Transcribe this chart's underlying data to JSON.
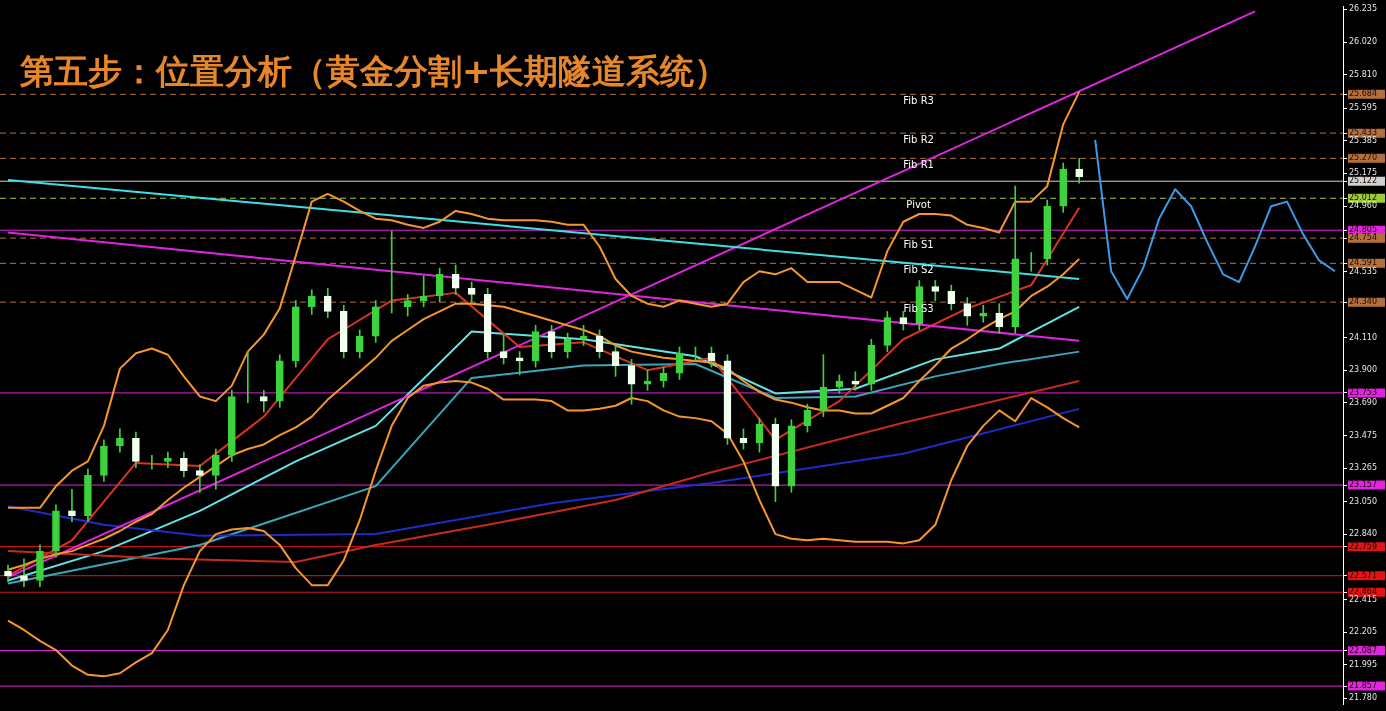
{
  "chart_data": {
    "type": "candlestick",
    "title": "第五步：位置分析（黄金分割+长期隧道系统）",
    "categories": [
      null,
      null,
      null,
      null,
      null,
      null,
      null,
      null,
      null,
      null,
      null,
      null,
      null,
      null,
      null,
      null,
      null,
      null,
      null,
      null,
      null,
      null,
      null,
      null,
      null,
      null,
      null,
      null,
      null,
      null,
      null,
      null,
      null,
      null,
      null,
      null,
      null,
      null,
      null,
      null,
      null,
      null,
      null,
      null,
      null,
      null,
      null,
      null,
      null,
      null,
      null,
      null,
      null,
      null,
      null,
      null,
      null,
      null,
      null,
      null,
      null,
      null,
      null,
      null,
      null,
      null,
      null,
      null,
      null,
      null,
      null,
      null,
      null,
      null,
      null,
      null,
      null,
      null,
      null,
      null,
      null,
      null,
      null,
      null
    ],
    "color": "#3ed23e",
    "colors": [
      "#f2fff0",
      "#f2fff0",
      "#3ed23e",
      "#3ed23e",
      "#f2fff0",
      "#3ed23e",
      "#3ed23e",
      "#3ed23e",
      "#f2fff0",
      "#3ed23e",
      "#3ed23e",
      "#f2fff0",
      "#f2fff0",
      "#3ed23e",
      "#3ed23e",
      "#3ed23e",
      "#f2fff0",
      "#3ed23e",
      "#3ed23e",
      "#3ed23e",
      "#f2fff0",
      "#f2fff0",
      "#3ed23e",
      "#3ed23e",
      "#3ed23e",
      "#3ed23e",
      "#3ed23e",
      "#3ed23e",
      "#f2fff0",
      "#f2fff0",
      "#f2fff0",
      "#f2fff0",
      "#f2fff0",
      "#3ed23e",
      "#f2fff0",
      "#3ed23e",
      "#3ed23e",
      "#f2fff0",
      "#f2fff0",
      "#f2fff0",
      "#3ed23e",
      "#3ed23e",
      "#3ed23e",
      "#3ed23e",
      "#f2fff0",
      "#f2fff0",
      "#f2fff0",
      "#3ed23e",
      "#f2fff0",
      "#3ed23e",
      "#3ed23e",
      "#3ed23e",
      "#3ed23e",
      "#f2fff0",
      "#3ed23e",
      "#3ed23e",
      "#f2fff0",
      "#3ed23e",
      "#f2fff0",
      "#f2fff0",
      "#f2fff0",
      "#3ed23e",
      "#f2fff0",
      "#3ed23e",
      "#3ed23e",
      "#3ed23e",
      "#3ed23e",
      "#f2fff0",
      null,
      null,
      null,
      null,
      null,
      null,
      null,
      null,
      null,
      null,
      null,
      null,
      null,
      null,
      null,
      null
    ],
    "ohlc": [
      [
        22.6,
        22.64,
        22.53,
        22.57
      ],
      [
        22.57,
        22.68,
        22.5,
        22.54
      ],
      [
        22.54,
        22.77,
        22.5,
        22.73
      ],
      [
        22.73,
        23.03,
        22.69,
        22.99
      ],
      [
        22.99,
        23.13,
        22.92,
        22.96
      ],
      [
        22.96,
        23.26,
        22.92,
        23.22
      ],
      [
        23.22,
        23.45,
        23.18,
        23.41
      ],
      [
        23.41,
        23.52,
        23.37,
        23.46
      ],
      [
        23.46,
        23.5,
        23.27,
        23.31
      ],
      [
        23.31,
        23.35,
        23.26,
        23.31
      ],
      [
        23.31,
        23.37,
        23.27,
        23.33
      ],
      [
        23.33,
        23.37,
        23.21,
        23.25
      ],
      [
        23.25,
        23.29,
        23.11,
        23.22
      ],
      [
        23.22,
        23.39,
        23.13,
        23.35
      ],
      [
        23.35,
        23.77,
        23.31,
        23.73
      ],
      [
        23.73,
        24.02,
        23.69,
        23.73
      ],
      [
        23.73,
        23.77,
        23.63,
        23.7
      ],
      [
        23.7,
        24.0,
        23.66,
        23.96
      ],
      [
        23.96,
        24.35,
        23.92,
        24.31
      ],
      [
        24.31,
        24.42,
        24.26,
        24.38
      ],
      [
        24.38,
        24.43,
        24.24,
        24.28
      ],
      [
        24.28,
        24.32,
        23.98,
        24.02
      ],
      [
        24.02,
        24.16,
        23.98,
        24.12
      ],
      [
        24.12,
        24.35,
        24.08,
        24.31
      ],
      [
        24.31,
        24.8,
        24.27,
        24.31
      ],
      [
        24.31,
        24.39,
        24.25,
        24.35
      ],
      [
        24.35,
        24.51,
        24.31,
        24.38
      ],
      [
        24.38,
        24.56,
        24.34,
        24.52
      ],
      [
        24.52,
        24.58,
        24.39,
        24.43
      ],
      [
        24.43,
        24.47,
        24.34,
        24.39
      ],
      [
        24.39,
        24.43,
        23.98,
        24.02
      ],
      [
        24.02,
        24.13,
        23.94,
        23.98
      ],
      [
        23.98,
        24.02,
        23.87,
        23.96
      ],
      [
        23.96,
        24.19,
        23.92,
        24.15
      ],
      [
        24.15,
        24.19,
        23.98,
        24.02
      ],
      [
        24.02,
        24.14,
        23.98,
        24.1
      ],
      [
        24.1,
        24.19,
        24.06,
        24.12
      ],
      [
        24.12,
        24.16,
        23.98,
        24.02
      ],
      [
        24.02,
        24.06,
        23.86,
        23.93
      ],
      [
        23.93,
        23.97,
        23.68,
        23.81
      ],
      [
        23.81,
        23.9,
        23.77,
        23.83
      ],
      [
        23.83,
        23.92,
        23.79,
        23.88
      ],
      [
        23.88,
        24.05,
        23.84,
        24.01
      ],
      [
        24.01,
        24.05,
        23.96,
        24.01
      ],
      [
        24.01,
        24.05,
        23.92,
        23.96
      ],
      [
        23.96,
        24.0,
        23.42,
        23.46
      ],
      [
        23.46,
        23.52,
        23.39,
        23.43
      ],
      [
        23.43,
        23.59,
        23.37,
        23.55
      ],
      [
        23.55,
        23.59,
        23.05,
        23.15
      ],
      [
        23.15,
        23.58,
        23.11,
        23.54
      ],
      [
        23.54,
        23.68,
        23.5,
        23.64
      ],
      [
        23.64,
        24.0,
        23.6,
        23.79
      ],
      [
        23.79,
        23.87,
        23.75,
        23.83
      ],
      [
        23.83,
        23.89,
        23.77,
        23.81
      ],
      [
        23.81,
        24.1,
        23.77,
        24.06
      ],
      [
        24.06,
        24.28,
        24.02,
        24.24
      ],
      [
        24.24,
        24.28,
        24.16,
        24.2
      ],
      [
        24.2,
        24.48,
        24.16,
        24.44
      ],
      [
        24.44,
        24.48,
        24.35,
        24.41
      ],
      [
        24.41,
        24.45,
        24.29,
        24.33
      ],
      [
        24.33,
        24.37,
        24.19,
        24.25
      ],
      [
        24.25,
        24.32,
        24.21,
        24.27
      ],
      [
        24.27,
        24.33,
        24.14,
        24.18
      ],
      [
        24.18,
        25.09,
        24.14,
        24.62
      ],
      [
        24.62,
        24.66,
        24.54,
        24.62
      ],
      [
        24.62,
        25.0,
        24.58,
        24.96
      ],
      [
        24.96,
        25.24,
        24.92,
        25.2
      ],
      [
        25.2,
        25.27,
        25.11,
        25.15
      ],
      null,
      null,
      null,
      null,
      null,
      null,
      null,
      null,
      null,
      null,
      null,
      null,
      null,
      null,
      null,
      null
    ],
    "series": [
      {
        "type": "line",
        "color": "#f5962e",
        "values": [
          23.01,
          23.01,
          23.01,
          23.15,
          23.25,
          23.31,
          23.54,
          23.91,
          24.01,
          24.04,
          24.0,
          23.86,
          23.73,
          23.7,
          23.8,
          24.02,
          24.13,
          24.3,
          24.64,
          24.99,
          25.04,
          24.99,
          24.93,
          24.88,
          24.87,
          24.84,
          24.82,
          24.86,
          24.93,
          24.91,
          24.88,
          24.87,
          24.87,
          24.87,
          24.86,
          24.84,
          24.84,
          24.7,
          24.49,
          24.38,
          24.33,
          24.31,
          24.35,
          24.33,
          24.31,
          24.33,
          24.47,
          24.54,
          24.52,
          24.56,
          24.47,
          24.47,
          24.47,
          24.42,
          24.37,
          24.67,
          24.86,
          24.91,
          24.91,
          24.9,
          24.84,
          24.82,
          24.79,
          24.99,
          24.99,
          25.09,
          25.49,
          25.7,
          null,
          null,
          null,
          null,
          null,
          null,
          null,
          null,
          null,
          null,
          null,
          null,
          null,
          null,
          null,
          null
        ]
      },
      {
        "type": "line",
        "color": "#f5962e",
        "values": [
          22.61,
          22.64,
          22.68,
          22.71,
          22.73,
          22.77,
          22.81,
          22.86,
          22.92,
          22.97,
          23.06,
          23.14,
          23.21,
          23.28,
          23.35,
          23.39,
          23.42,
          23.48,
          23.53,
          23.6,
          23.71,
          23.8,
          23.89,
          23.98,
          24.09,
          24.16,
          24.23,
          24.28,
          24.33,
          24.33,
          24.32,
          24.31,
          24.28,
          24.25,
          24.22,
          24.19,
          24.16,
          24.12,
          24.06,
          24.02,
          24.0,
          23.98,
          23.97,
          23.96,
          23.95,
          23.91,
          23.83,
          23.76,
          23.71,
          23.69,
          23.66,
          23.64,
          23.64,
          23.62,
          23.62,
          23.67,
          23.72,
          23.83,
          23.93,
          24.04,
          24.1,
          24.17,
          24.23,
          24.28,
          24.38,
          24.44,
          24.52,
          24.62,
          null,
          null,
          null,
          null,
          null,
          null,
          null,
          null,
          null,
          null,
          null,
          null,
          null,
          null,
          null,
          null
        ]
      },
      {
        "type": "line",
        "color": "#f5962e",
        "values": [
          22.28,
          22.22,
          22.15,
          22.09,
          21.99,
          21.93,
          21.92,
          21.94,
          22.01,
          22.07,
          22.22,
          22.51,
          22.73,
          22.84,
          22.87,
          22.88,
          22.86,
          22.77,
          22.62,
          22.51,
          22.51,
          22.67,
          22.93,
          23.25,
          23.54,
          23.72,
          23.8,
          23.82,
          23.83,
          23.82,
          23.78,
          23.71,
          23.71,
          23.71,
          23.7,
          23.64,
          23.64,
          23.65,
          23.67,
          23.72,
          23.7,
          23.64,
          23.6,
          23.59,
          23.57,
          23.49,
          23.31,
          23.06,
          22.84,
          22.81,
          22.8,
          22.81,
          22.8,
          22.79,
          22.79,
          22.79,
          22.78,
          22.8,
          22.9,
          23.19,
          23.41,
          23.54,
          23.64,
          23.57,
          23.72,
          23.66,
          23.59,
          23.53,
          null,
          null,
          null,
          null,
          null,
          null,
          null,
          null,
          null,
          null,
          null,
          null,
          null,
          null,
          null,
          null
        ]
      },
      {
        "type": "line",
        "color": "#3fe0e4",
        "values": [
          25.13,
          null,
          null,
          null,
          null,
          null,
          null,
          null,
          null,
          null,
          null,
          null,
          null,
          null,
          null,
          null,
          null,
          null,
          null,
          null,
          null,
          null,
          null,
          null,
          null,
          null,
          null,
          null,
          null,
          null,
          null,
          null,
          null,
          null,
          null,
          null,
          null,
          null,
          null,
          null,
          null,
          null,
          null,
          null,
          null,
          null,
          null,
          null,
          null,
          null,
          null,
          null,
          null,
          null,
          null,
          null,
          null,
          null,
          null,
          null,
          null,
          null,
          null,
          null,
          null,
          null,
          null,
          24.49,
          null,
          null,
          null,
          null,
          null,
          null,
          null,
          null,
          null,
          null,
          null,
          null,
          null,
          null,
          null,
          null
        ]
      },
      {
        "type": "line",
        "color": "#e024e0",
        "values": [
          24.79,
          null,
          null,
          null,
          null,
          null,
          null,
          null,
          null,
          null,
          null,
          null,
          null,
          null,
          null,
          null,
          null,
          null,
          null,
          null,
          null,
          null,
          null,
          null,
          null,
          null,
          null,
          null,
          null,
          null,
          null,
          null,
          null,
          null,
          null,
          null,
          null,
          null,
          null,
          null,
          null,
          null,
          null,
          null,
          null,
          null,
          null,
          null,
          null,
          null,
          null,
          null,
          null,
          null,
          null,
          null,
          null,
          null,
          null,
          null,
          null,
          null,
          null,
          null,
          null,
          null,
          null,
          24.09,
          null,
          null,
          null,
          null,
          null,
          null,
          null,
          null,
          null,
          null,
          null,
          null,
          null,
          null,
          null,
          null
        ]
      },
      {
        "type": "line",
        "color": "#e024e0",
        "values": [
          22.56,
          null,
          null,
          null,
          null,
          null,
          null,
          null,
          null,
          null,
          null,
          null,
          null,
          null,
          null,
          null,
          null,
          null,
          null,
          null,
          null,
          null,
          null,
          null,
          null,
          null,
          null,
          null,
          null,
          null,
          null,
          null,
          null,
          null,
          null,
          null,
          null,
          null,
          null,
          null,
          null,
          null,
          null,
          null,
          null,
          null,
          null,
          null,
          null,
          null,
          null,
          null,
          null,
          null,
          null,
          null,
          null,
          null,
          null,
          null,
          null,
          null,
          null,
          null,
          null,
          null,
          null,
          null,
          null,
          null,
          null,
          null,
          null,
          null,
          null,
          null,
          null,
          null,
          26.22,
          null,
          null,
          null,
          null,
          null
        ]
      },
      {
        "type": "line",
        "color": "#c62a1e",
        "values": [
          22.73,
          null,
          null,
          null,
          null,
          null,
          null,
          null,
          null,
          null,
          22.68,
          null,
          null,
          null,
          null,
          null,
          null,
          null,
          22.66,
          null,
          null,
          null,
          null,
          22.77,
          null,
          null,
          null,
          null,
          null,
          null,
          22.9,
          null,
          null,
          null,
          null,
          null,
          null,
          null,
          23.06,
          null,
          null,
          null,
          null,
          null,
          23.24,
          null,
          null,
          null,
          null,
          null,
          null,
          null,
          null,
          null,
          null,
          null,
          23.56,
          null,
          null,
          null,
          null,
          null,
          null,
          null,
          null,
          null,
          null,
          23.83,
          null,
          null,
          null,
          null,
          null,
          null,
          null,
          null,
          null,
          null,
          null,
          null,
          null,
          null,
          null,
          null
        ]
      },
      {
        "type": "line",
        "color": "#1e2cc8",
        "values": [
          23.02,
          null,
          null,
          null,
          null,
          null,
          22.9,
          null,
          null,
          null,
          null,
          null,
          22.83,
          null,
          null,
          null,
          null,
          null,
          null,
          null,
          null,
          null,
          null,
          22.84,
          null,
          null,
          null,
          null,
          null,
          null,
          null,
          null,
          null,
          null,
          23.04,
          null,
          null,
          null,
          null,
          null,
          null,
          null,
          null,
          null,
          23.17,
          null,
          null,
          null,
          null,
          null,
          null,
          null,
          null,
          null,
          null,
          null,
          23.36,
          null,
          null,
          null,
          null,
          null,
          null,
          null,
          null,
          null,
          null,
          23.65,
          null,
          null,
          null,
          null,
          null,
          null,
          null,
          null,
          null,
          null,
          null,
          null,
          null,
          null,
          null,
          null
        ]
      },
      {
        "type": "line",
        "color": "#d8341e",
        "values": [
          22.57,
          null,
          null,
          null,
          22.8,
          null,
          null,
          null,
          23.3,
          null,
          null,
          null,
          23.28,
          null,
          null,
          null,
          23.6,
          null,
          null,
          null,
          24.1,
          null,
          null,
          null,
          24.35,
          null,
          null,
          null,
          24.4,
          null,
          null,
          null,
          24.05,
          null,
          null,
          null,
          24.08,
          null,
          null,
          null,
          23.9,
          null,
          null,
          null,
          23.98,
          null,
          null,
          null,
          23.45,
          null,
          null,
          null,
          23.7,
          null,
          null,
          null,
          24.1,
          null,
          null,
          null,
          24.3,
          null,
          null,
          null,
          24.45,
          null,
          null,
          24.95,
          null,
          null,
          null,
          null,
          null,
          null,
          null,
          null,
          null,
          null,
          null,
          null,
          null,
          null,
          null,
          null
        ]
      },
      {
        "type": "line",
        "color": "#62e4e4",
        "values": [
          22.54,
          null,
          null,
          null,
          null,
          null,
          22.73,
          null,
          null,
          null,
          null,
          null,
          22.99,
          null,
          null,
          null,
          null,
          null,
          23.31,
          null,
          null,
          null,
          null,
          23.54,
          null,
          null,
          null,
          null,
          null,
          24.15,
          null,
          null,
          null,
          null,
          null,
          null,
          24.1,
          null,
          null,
          null,
          null,
          null,
          null,
          23.99,
          null,
          null,
          null,
          null,
          23.75,
          null,
          null,
          null,
          null,
          23.78,
          null,
          null,
          null,
          null,
          23.97,
          null,
          null,
          null,
          24.04,
          null,
          null,
          null,
          null,
          24.31,
          null,
          null,
          null,
          null,
          null,
          null,
          null,
          null,
          null,
          null,
          null,
          null,
          null,
          null,
          null,
          null
        ]
      },
      {
        "type": "line",
        "color": "#3aa6b8",
        "values": [
          22.52,
          null,
          null,
          null,
          null,
          null,
          null,
          null,
          null,
          null,
          null,
          null,
          22.77,
          null,
          null,
          null,
          null,
          null,
          null,
          null,
          null,
          null,
          null,
          23.15,
          null,
          null,
          null,
          null,
          null,
          23.85,
          null,
          null,
          null,
          null,
          null,
          null,
          23.93,
          null,
          null,
          null,
          null,
          null,
          null,
          23.94,
          null,
          null,
          null,
          null,
          23.72,
          null,
          null,
          null,
          null,
          23.73,
          null,
          null,
          null,
          null,
          23.86,
          null,
          null,
          null,
          23.94,
          null,
          null,
          null,
          null,
          24.02,
          null,
          null,
          null,
          null,
          null,
          null,
          null,
          null,
          null,
          null,
          null,
          null,
          null,
          null,
          null,
          null
        ]
      },
      {
        "type": "line",
        "color": "#3c9ae6",
        "values": [
          null,
          null,
          null,
          null,
          null,
          null,
          null,
          null,
          null,
          null,
          null,
          null,
          null,
          null,
          null,
          null,
          null,
          null,
          null,
          null,
          null,
          null,
          null,
          null,
          null,
          null,
          null,
          null,
          null,
          null,
          null,
          null,
          null,
          null,
          null,
          null,
          null,
          null,
          null,
          null,
          null,
          null,
          null,
          null,
          null,
          null,
          null,
          null,
          null,
          null,
          null,
          null,
          null,
          null,
          null,
          null,
          null,
          null,
          null,
          null,
          null,
          null,
          null,
          null,
          null,
          null,
          null,
          null,
          25.39,
          24.54,
          24.36,
          24.56,
          24.88,
          25.07,
          24.96,
          24.73,
          24.52,
          24.47,
          24.7,
          24.96,
          24.99,
          24.78,
          24.61,
          24.54
        ]
      }
    ],
    "ref_lines": [
      {
        "axis": "y",
        "value": 25.684,
        "label": "Fib R3",
        "color": "#b4703c",
        "line_style": "dashed"
      },
      {
        "axis": "y",
        "value": 25.433,
        "label": "Fib R2",
        "color": "#b4703c",
        "line_style": "dashed"
      },
      {
        "axis": "y",
        "value": 25.27,
        "label": "Fib R1",
        "color": "#b4703c",
        "line_style": "dashed"
      },
      {
        "axis": "y",
        "value": 25.122,
        "label": null,
        "color": "#d0d0d0",
        "line_style": "solid"
      },
      {
        "axis": "y",
        "value": 25.012,
        "label": "Pivot",
        "color": "#9ccc3a",
        "line_style": "dashed"
      },
      {
        "axis": "y",
        "value": 24.805,
        "label": null,
        "color": "#e024e0",
        "line_style": "solid"
      },
      {
        "axis": "y",
        "value": 24.754,
        "label": "Fib S1",
        "color": "#b4703c",
        "line_style": "dashed"
      },
      {
        "axis": "y",
        "value": 24.591,
        "label": "Fib S2",
        "color": "#b4703c",
        "line_style": "dashed"
      },
      {
        "axis": "y",
        "value": 24.34,
        "label": "Fib S3",
        "color": "#b4703c",
        "line_style": "dashed"
      },
      {
        "axis": "y",
        "value": 23.753,
        "label": null,
        "color": "#e024e0",
        "line_style": "solid"
      },
      {
        "axis": "y",
        "value": 23.157,
        "label": null,
        "color": "#e024e0",
        "line_style": "solid"
      },
      {
        "axis": "y",
        "value": 22.759,
        "label": null,
        "color": "#e01414",
        "line_style": "solid"
      },
      {
        "axis": "y",
        "value": 22.571,
        "label": null,
        "color": "#e01414",
        "line_style": "solid"
      },
      {
        "axis": "y",
        "value": 22.464,
        "label": null,
        "color": "#e01414",
        "line_style": "solid"
      },
      {
        "axis": "y",
        "value": 22.087,
        "label": null,
        "color": "#e024e0",
        "line_style": "solid"
      },
      {
        "axis": "y",
        "value": 21.857,
        "label": null,
        "color": "#e024e0",
        "line_style": "solid"
      }
    ],
    "ylim": [
      21.74,
      26.25
    ],
    "yticks": [
      26.235,
      {
        "value": 26.02,
        "label": "26.020"
      },
      {
        "value": 25.81,
        "label": "25.810"
      },
      25.684,
      25.595,
      25.433,
      25.385,
      {
        "value": 25.27,
        "label": "25.270"
      },
      25.175,
      25.122,
      25.012,
      {
        "value": 24.96,
        "label": "24.960"
      },
      24.805,
      24.754,
      24.591,
      24.535,
      {
        "value": 24.34,
        "label": "24.340"
      },
      {
        "value": 24.11,
        "label": "24.110"
      },
      {
        "value": 23.9,
        "label": "23.900"
      },
      23.753,
      {
        "value": 23.69,
        "label": "23.690"
      },
      23.475,
      23.265,
      23.157,
      {
        "value": 23.05,
        "label": "23.050"
      },
      {
        "value": 22.84,
        "label": "22.840"
      },
      22.759,
      22.571,
      22.464,
      22.415,
      22.205,
      22.087,
      21.995,
      21.857,
      {
        "value": 21.78,
        "label": "21.780"
      }
    ],
    "tick_labels": "y",
    "marker": "none",
    "line_style": "solid"
  }
}
